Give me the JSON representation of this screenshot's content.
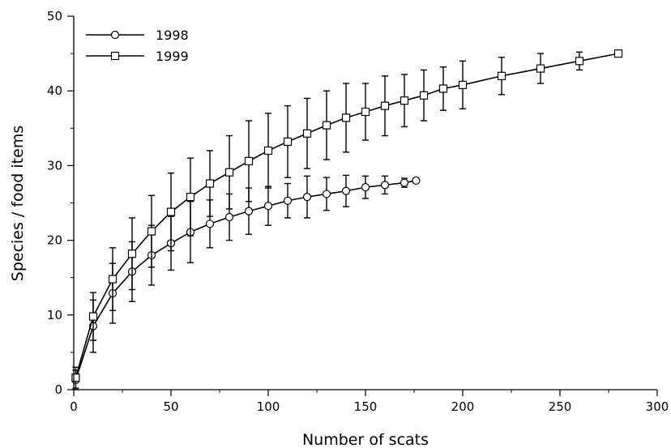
{
  "chart_data": {
    "type": "line",
    "title": "",
    "xlabel": "Number of scats",
    "ylabel": "Species / food items",
    "xlim": [
      0,
      300
    ],
    "ylim": [
      0,
      50
    ],
    "x_ticks": [
      0,
      50,
      100,
      150,
      200,
      250,
      300
    ],
    "y_ticks": [
      0,
      10,
      20,
      30,
      40,
      50
    ],
    "grid": false,
    "legend_position": "top-left",
    "error_bars": true,
    "series": [
      {
        "name": "1998",
        "marker": "circle",
        "color": "#000000",
        "points": [
          {
            "x": 1,
            "y": 1.3,
            "err": 1.3
          },
          {
            "x": 10,
            "y": 8.5,
            "err": 3.5
          },
          {
            "x": 20,
            "y": 12.9,
            "err": 4
          },
          {
            "x": 30,
            "y": 15.8,
            "err": 4
          },
          {
            "x": 40,
            "y": 18.0,
            "err": 4
          },
          {
            "x": 50,
            "y": 19.6,
            "err": 3.6
          },
          {
            "x": 60,
            "y": 21.1,
            "err": 4.1
          },
          {
            "x": 70,
            "y": 22.2,
            "err": 3.2
          },
          {
            "x": 80,
            "y": 23.1,
            "err": 3.1
          },
          {
            "x": 90,
            "y": 23.9,
            "err": 3.1
          },
          {
            "x": 100,
            "y": 24.6,
            "err": 2.6
          },
          {
            "x": 110,
            "y": 25.3,
            "err": 2.3
          },
          {
            "x": 120,
            "y": 25.8,
            "err": 2.8
          },
          {
            "x": 130,
            "y": 26.2,
            "err": 2.2
          },
          {
            "x": 140,
            "y": 26.6,
            "err": 2.1
          },
          {
            "x": 150,
            "y": 27.1,
            "err": 1.5
          },
          {
            "x": 160,
            "y": 27.4,
            "err": 1.2
          },
          {
            "x": 170,
            "y": 27.7,
            "err": 0.6
          },
          {
            "x": 176,
            "y": 28.0,
            "err": 0
          }
        ]
      },
      {
        "name": "1999",
        "marker": "square",
        "color": "#000000",
        "points": [
          {
            "x": 1,
            "y": 1.6,
            "err": 1.4
          },
          {
            "x": 10,
            "y": 9.8,
            "err": 3.2
          },
          {
            "x": 20,
            "y": 14.8,
            "err": 4.2
          },
          {
            "x": 30,
            "y": 18.2,
            "err": 4.8
          },
          {
            "x": 40,
            "y": 21.2,
            "err": 4.8
          },
          {
            "x": 50,
            "y": 23.8,
            "err": 5.2
          },
          {
            "x": 60,
            "y": 25.8,
            "err": 5.2
          },
          {
            "x": 70,
            "y": 27.6,
            "err": 4.4
          },
          {
            "x": 80,
            "y": 29.1,
            "err": 4.9
          },
          {
            "x": 90,
            "y": 30.6,
            "err": 5.4
          },
          {
            "x": 100,
            "y": 32.0,
            "err": 5
          },
          {
            "x": 110,
            "y": 33.2,
            "err": 4.8
          },
          {
            "x": 120,
            "y": 34.3,
            "err": 4.7
          },
          {
            "x": 130,
            "y": 35.4,
            "err": 4.6
          },
          {
            "x": 140,
            "y": 36.4,
            "err": 4.6
          },
          {
            "x": 150,
            "y": 37.2,
            "err": 3.8
          },
          {
            "x": 160,
            "y": 38.0,
            "err": 4
          },
          {
            "x": 170,
            "y": 38.7,
            "err": 3.5
          },
          {
            "x": 180,
            "y": 39.4,
            "err": 3.4
          },
          {
            "x": 190,
            "y": 40.3,
            "err": 2.9
          },
          {
            "x": 200,
            "y": 40.8,
            "err": 3.2
          },
          {
            "x": 220,
            "y": 42.0,
            "err": 2.5
          },
          {
            "x": 240,
            "y": 43.0,
            "err": 2
          },
          {
            "x": 260,
            "y": 44.0,
            "err": 1.2
          },
          {
            "x": 280,
            "y": 45.0,
            "err": 0
          }
        ]
      }
    ]
  }
}
